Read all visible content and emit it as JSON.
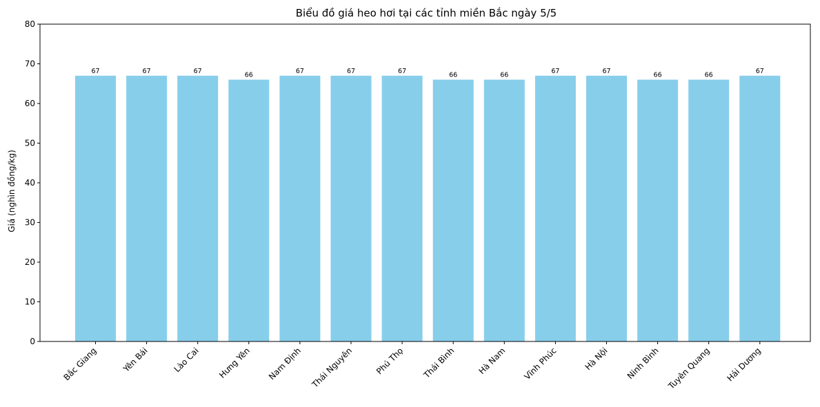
{
  "chart_data": {
    "type": "bar",
    "title": "Biểu đồ giá heo hơi tại các tỉnh miền Bắc ngày 5/5",
    "xlabel": "",
    "ylabel": "Giá (nghìn đồng/kg)",
    "categories": [
      "Bắc Giang",
      "Yên Bái",
      "Lào Cai",
      "Hưng Yên",
      "Nam Định",
      "Thái Nguyên",
      "Phú Thọ",
      "Thái Bình",
      "Hà Nam",
      "Vĩnh Phúc",
      "Hà Nội",
      "Ninh Bình",
      "Tuyên Quang",
      "Hải Dương"
    ],
    "values": [
      67,
      67,
      67,
      66,
      67,
      67,
      67,
      66,
      66,
      67,
      67,
      66,
      66,
      67
    ],
    "data_labels": [
      "67",
      "67",
      "67",
      "66",
      "67",
      "67",
      "67",
      "66",
      "66",
      "67",
      "67",
      "66",
      "66",
      "67"
    ],
    "ylim": [
      0,
      80
    ],
    "yticks": [
      0,
      10,
      20,
      30,
      40,
      50,
      60,
      70,
      80
    ],
    "grid": false,
    "bar_color": "#87ceeb"
  }
}
